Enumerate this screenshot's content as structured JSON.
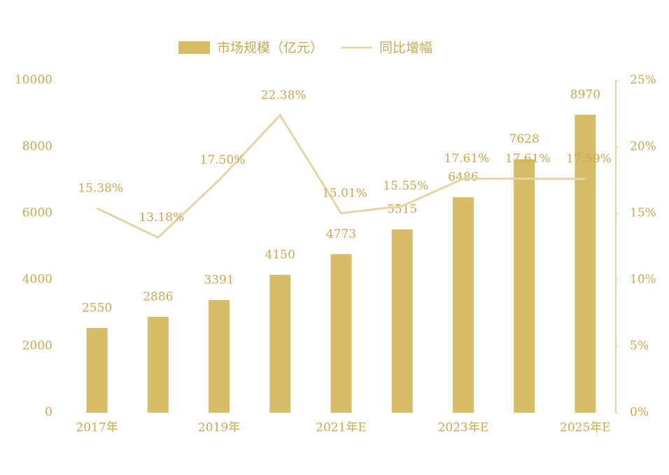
{
  "chart_data": {
    "type": "bar-line",
    "legend": "top",
    "categories": [
      "2017年",
      null,
      "2019年",
      null,
      "2021年E",
      null,
      "2023年E",
      null,
      "2025年E"
    ],
    "series": [
      {
        "name": "市场规模（亿元）",
        "type": "bar",
        "color": "#d8bb66",
        "values": [
          2550,
          2886,
          3391,
          4150,
          4773,
          5515,
          6486,
          7628,
          8970
        ]
      },
      {
        "name": "同比增幅",
        "type": "line",
        "axis": "y2",
        "color": "#e5d5a5",
        "values": [
          15.38,
          13.18,
          17.5,
          22.38,
          15.01,
          15.55,
          17.61,
          17.61,
          17.59
        ],
        "value_labels": [
          "15.38%",
          "13.18%",
          "17.50%",
          "22.38%",
          "15.01%",
          "15.55%",
          "17.61%",
          "17.61%",
          "17.59%"
        ]
      }
    ],
    "ylim": [
      0,
      10000
    ],
    "yticks": [
      0,
      2000,
      4000,
      6000,
      8000,
      10000
    ],
    "y2lim": [
      0,
      25
    ],
    "y2ticks": [
      {
        "value": 0,
        "label": "0%"
      },
      {
        "value": 5,
        "label": "5%"
      },
      {
        "value": 10,
        "label": "10%"
      },
      {
        "value": 15,
        "label": "15%"
      },
      {
        "value": 20,
        "label": "20%"
      },
      {
        "value": 25,
        "label": "25%"
      }
    ]
  }
}
